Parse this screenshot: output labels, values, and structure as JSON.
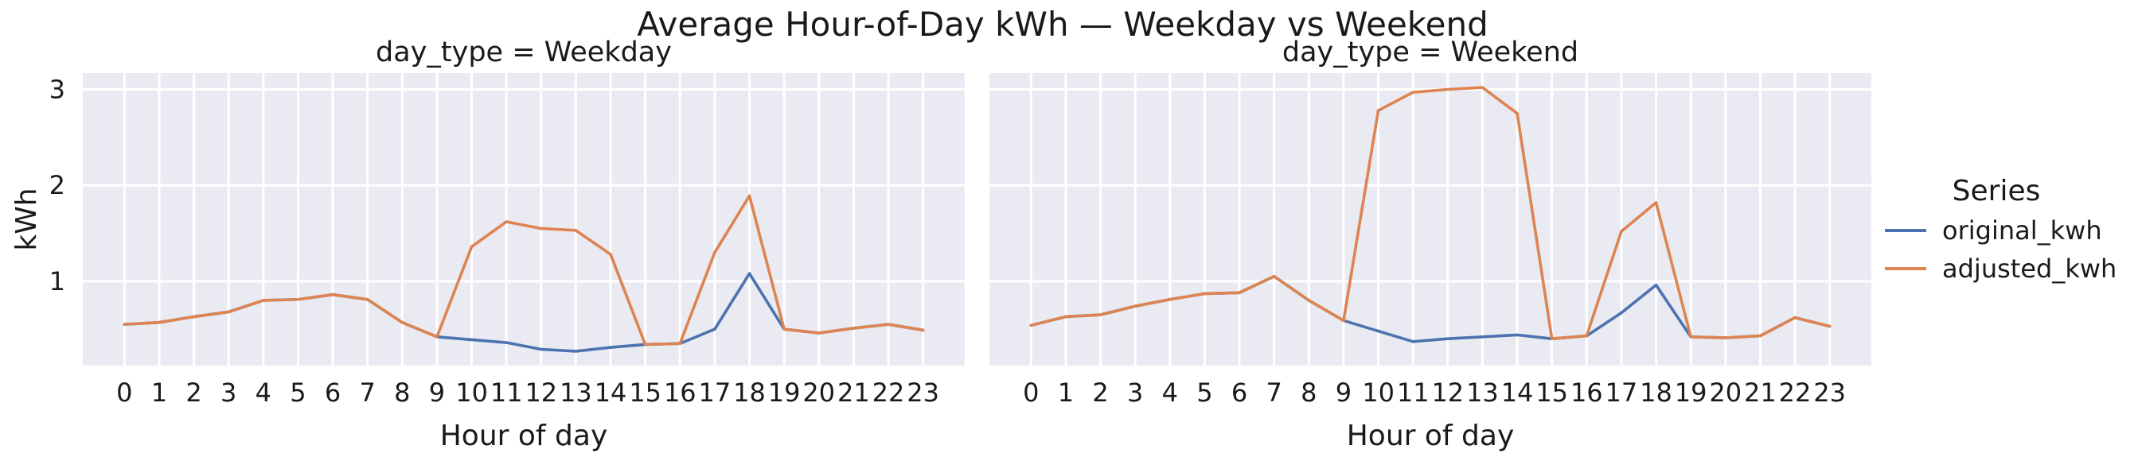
{
  "chart_data": {
    "type": "line",
    "title": "Average Hour-of-Day kWh — Weekday vs Weekend",
    "xlabel": "Hour of day",
    "ylabel": "kWh",
    "x": [
      0,
      1,
      2,
      3,
      4,
      5,
      6,
      7,
      8,
      9,
      10,
      11,
      12,
      13,
      14,
      15,
      16,
      17,
      18,
      19,
      20,
      21,
      22,
      23
    ],
    "yticks": [
      1,
      2,
      3
    ],
    "ylim": [
      0.12,
      3.17
    ],
    "xlim": [
      -1.2,
      24.2
    ],
    "grid": true,
    "legend": {
      "title": "Series",
      "placement": "right",
      "entries": [
        "original_kwh",
        "adjusted_kwh"
      ]
    },
    "colors": {
      "original_kwh": "#4c72b0",
      "adjusted_kwh": "#dd8452",
      "panel_bg": "#eaeaf2",
      "grid": "#ffffff"
    },
    "panels": [
      {
        "label": "day_type = Weekday",
        "series": [
          {
            "name": "original_kwh",
            "values": [
              0.55,
              0.57,
              0.63,
              0.68,
              0.8,
              0.81,
              0.86,
              0.81,
              0.57,
              0.42,
              0.39,
              0.36,
              0.29,
              0.27,
              0.31,
              0.34,
              0.35,
              0.5,
              1.08,
              0.5,
              0.46,
              0.51,
              0.55,
              0.49
            ]
          },
          {
            "name": "adjusted_kwh",
            "values": [
              0.55,
              0.57,
              0.63,
              0.68,
              0.8,
              0.81,
              0.86,
              0.81,
              0.57,
              0.42,
              1.36,
              1.62,
              1.55,
              1.53,
              1.28,
              0.34,
              0.35,
              1.3,
              1.89,
              0.5,
              0.46,
              0.51,
              0.55,
              0.49
            ]
          }
        ]
      },
      {
        "label": "day_type = Weekend",
        "series": [
          {
            "name": "original_kwh",
            "values": [
              0.54,
              0.63,
              0.65,
              0.74,
              0.81,
              0.87,
              0.88,
              1.05,
              0.8,
              0.59,
              0.48,
              0.37,
              0.4,
              0.42,
              0.44,
              0.4,
              0.43,
              0.67,
              0.96,
              0.42,
              0.41,
              0.43,
              0.62,
              0.53
            ]
          },
          {
            "name": "adjusted_kwh",
            "values": [
              0.54,
              0.63,
              0.65,
              0.74,
              0.81,
              0.87,
              0.88,
              1.05,
              0.8,
              0.59,
              2.78,
              2.97,
              3.0,
              3.02,
              2.75,
              0.4,
              0.43,
              1.52,
              1.82,
              0.42,
              0.41,
              0.43,
              0.62,
              0.53
            ]
          }
        ]
      }
    ]
  }
}
